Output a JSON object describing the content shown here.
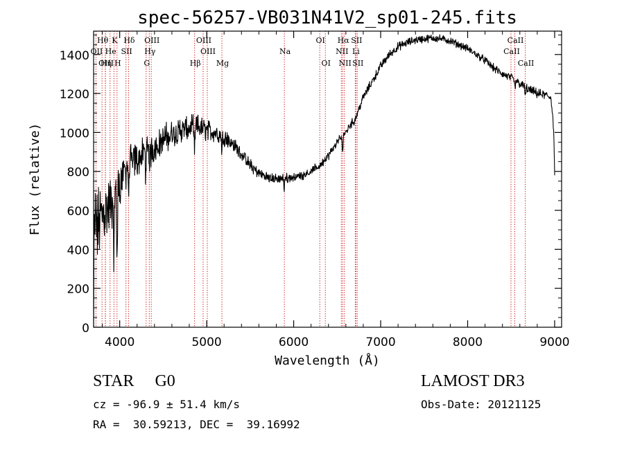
{
  "chart_data": {
    "type": "line",
    "title": "spec-56257-VB031N41V2_sp01-245.fits",
    "xlabel": "Wavelength (Å)",
    "ylabel": "Flux (relative)",
    "xlim": [
      3700,
      9080
    ],
    "ylim": [
      0,
      1520
    ],
    "xticks": [
      4000,
      5000,
      6000,
      7000,
      8000,
      9000
    ],
    "yticks": [
      0,
      200,
      400,
      600,
      800,
      1000,
      1200,
      1400
    ],
    "xticklabels": [
      "4000",
      "5000",
      "6000",
      "7000",
      "8000",
      "9000"
    ],
    "yticklabels": [
      "0",
      "200",
      "400",
      "600",
      "800",
      "1000",
      "1200",
      "1400"
    ],
    "spectrum_anchors": [
      [
        3700,
        0
      ],
      [
        3705,
        420
      ],
      [
        3720,
        560
      ],
      [
        3740,
        500
      ],
      [
        3780,
        560
      ],
      [
        3830,
        600
      ],
      [
        3880,
        620
      ],
      [
        3930,
        650
      ],
      [
        3980,
        700
      ],
      [
        4030,
        780
      ],
      [
        4100,
        840
      ],
      [
        4200,
        860
      ],
      [
        4300,
        900
      ],
      [
        4400,
        920
      ],
      [
        4500,
        960
      ],
      [
        4600,
        990
      ],
      [
        4700,
        1010
      ],
      [
        4800,
        1020
      ],
      [
        4900,
        1030
      ],
      [
        5000,
        1010
      ],
      [
        5100,
        1000
      ],
      [
        5200,
        980
      ],
      [
        5300,
        940
      ],
      [
        5400,
        890
      ],
      [
        5500,
        830
      ],
      [
        5600,
        790
      ],
      [
        5700,
        770
      ],
      [
        5800,
        760
      ],
      [
        5900,
        765
      ],
      [
        6000,
        770
      ],
      [
        6100,
        780
      ],
      [
        6200,
        800
      ],
      [
        6300,
        830
      ],
      [
        6400,
        880
      ],
      [
        6500,
        950
      ],
      [
        6560,
        980
      ],
      [
        6600,
        1000
      ],
      [
        6650,
        1040
      ],
      [
        6700,
        1060
      ],
      [
        6750,
        1120
      ],
      [
        6800,
        1180
      ],
      [
        6900,
        1260
      ],
      [
        7000,
        1340
      ],
      [
        7100,
        1400
      ],
      [
        7200,
        1440
      ],
      [
        7300,
        1460
      ],
      [
        7400,
        1475
      ],
      [
        7500,
        1480
      ],
      [
        7600,
        1485
      ],
      [
        7700,
        1480
      ],
      [
        7800,
        1470
      ],
      [
        7900,
        1450
      ],
      [
        8000,
        1430
      ],
      [
        8100,
        1400
      ],
      [
        8200,
        1370
      ],
      [
        8300,
        1330
      ],
      [
        8400,
        1300
      ],
      [
        8500,
        1280
      ],
      [
        8600,
        1250
      ],
      [
        8700,
        1220
      ],
      [
        8800,
        1200
      ],
      [
        8900,
        1190
      ],
      [
        8960,
        1180
      ],
      [
        8990,
        1000
      ],
      [
        9000,
        780
      ]
    ],
    "noise_bands": [
      [
        3700,
        350
      ],
      [
        3900,
        250
      ],
      [
        4100,
        150
      ],
      [
        4500,
        120
      ],
      [
        5000,
        90
      ],
      [
        5300,
        60
      ],
      [
        5600,
        45
      ],
      [
        6000,
        35
      ],
      [
        6500,
        35
      ],
      [
        7000,
        35
      ],
      [
        8000,
        30
      ],
      [
        9000,
        40
      ]
    ],
    "absorption_dips": [
      [
        3934,
        400
      ],
      [
        3969,
        420
      ],
      [
        4102,
        150
      ],
      [
        4300,
        120
      ],
      [
        4340,
        150
      ],
      [
        4861,
        160
      ],
      [
        5175,
        100
      ],
      [
        5890,
        90
      ],
      [
        6563,
        120
      ],
      [
        8542,
        50
      ],
      [
        8662,
        50
      ]
    ],
    "lines": [
      {
        "label": "Hθ",
        "wavelength": 3797,
        "row": 0
      },
      {
        "label": "K",
        "wavelength": 3934,
        "row": 0
      },
      {
        "label": "Hδ",
        "wavelength": 4102,
        "row": 0
      },
      {
        "label": "OIII",
        "wavelength": 4363,
        "row": 0
      },
      {
        "label": "OIII",
        "wavelength": 4959,
        "row": 0
      },
      {
        "label": "OI",
        "wavelength": 6300,
        "row": 0
      },
      {
        "label": "Hα",
        "wavelength": 6563,
        "row": 0
      },
      {
        "label": "SII",
        "wavelength": 6716,
        "row": 0
      },
      {
        "label": "CaII",
        "wavelength": 8542,
        "row": 0
      },
      {
        "label": "OII",
        "wavelength": 3727,
        "row": 1
      },
      {
        "label": "He",
        "wavelength": 3889,
        "row": 1
      },
      {
        "label": "SII",
        "wavelength": 4072,
        "row": 1
      },
      {
        "label": "Hγ",
        "wavelength": 4340,
        "row": 1
      },
      {
        "label": "OIII",
        "wavelength": 5007,
        "row": 1
      },
      {
        "label": "Na",
        "wavelength": 5893,
        "row": 1
      },
      {
        "label": "NII",
        "wavelength": 6548,
        "row": 1
      },
      {
        "label": "Li",
        "wavelength": 6708,
        "row": 1
      },
      {
        "label": "CaII",
        "wavelength": 8498,
        "row": 1
      },
      {
        "label": "OIII",
        "wavelength": 3836,
        "row": 2
      },
      {
        "label": "Hη",
        "wavelength": 3835,
        "row": 2
      },
      {
        "label": "H",
        "wavelength": 3969,
        "row": 2
      },
      {
        "label": "G",
        "wavelength": 4304,
        "row": 2
      },
      {
        "label": "Hβ",
        "wavelength": 4861,
        "row": 2
      },
      {
        "label": "Mg",
        "wavelength": 5175,
        "row": 2
      },
      {
        "label": "OI",
        "wavelength": 6364,
        "row": 2
      },
      {
        "label": "NII",
        "wavelength": 6583,
        "row": 2
      },
      {
        "label": "SII",
        "wavelength": 6731,
        "row": 2
      },
      {
        "label": "CaII",
        "wavelength": 8662,
        "row": 2
      }
    ]
  },
  "info": {
    "object_class": "STAR",
    "subclass": "G0",
    "survey": "LAMOST DR3",
    "cz_label": "cz = ",
    "cz_value": "-96.9",
    "cz_pm": "±",
    "cz_error": "51.4",
    "cz_unit": "km/s",
    "obs_date_label": "Obs-Date:",
    "obs_date": "20121125",
    "ra_label": "RA =",
    "ra": "30.59213",
    "dec_label": "DEC =",
    "dec": "39.16992"
  },
  "colors": {
    "axis": "#000000",
    "spectrum": "#000000",
    "line_marker": "#cc0000",
    "text": "#000000",
    "background": "#ffffff"
  }
}
